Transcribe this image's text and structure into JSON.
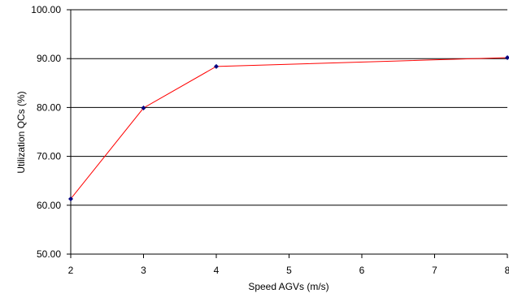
{
  "chart_data": {
    "type": "line",
    "title": "",
    "xlabel": "Speed AGVs (m/s)",
    "ylabel": "Utilization QCs (%)",
    "x": [
      2,
      3,
      4,
      8
    ],
    "series": [
      {
        "values": [
          61.3,
          79.9,
          88.4,
          90.2
        ]
      }
    ],
    "xlim": [
      2,
      8
    ],
    "ylim": [
      50,
      100
    ],
    "x_ticks": [
      "2",
      "3",
      "4",
      "5",
      "6",
      "7",
      "8"
    ],
    "y_ticks": [
      "50.00",
      "60.00",
      "70.00",
      "80.00",
      "90.00",
      "100.00"
    ],
    "grid": "horizontal",
    "legend": "none",
    "colors": {
      "line": "#ff0000",
      "marker": "#000080",
      "grid": "#000000",
      "axis": "#000000"
    }
  }
}
